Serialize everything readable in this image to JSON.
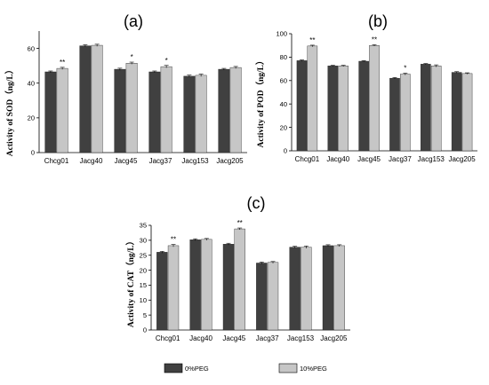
{
  "colors": {
    "series_0": "#404040",
    "series_1": "#c6c6c6",
    "axis": "#000000"
  },
  "legend": {
    "items": [
      {
        "label": "0%PEG",
        "color": "#404040"
      },
      {
        "label": "10%PEG",
        "color": "#c6c6c6"
      }
    ]
  },
  "chart_data": [
    {
      "type": "bar",
      "panel_label": "(a)",
      "ylabel": "Activity of SOD（ng/L）",
      "ylim": [
        0,
        70
      ],
      "yticks": [
        0,
        20,
        40,
        60
      ],
      "categories": [
        "Chcg01",
        "Jacg40",
        "Jacg45",
        "Jacg37",
        "Jacg153",
        "Jacg205"
      ],
      "series": [
        {
          "name": "0%PEG",
          "values": [
            46.5,
            61.5,
            48.0,
            46.5,
            44.0,
            48.0
          ]
        },
        {
          "name": "10%PEG",
          "values": [
            48.5,
            61.8,
            51.5,
            49.5,
            44.5,
            49.0
          ]
        }
      ],
      "errors": [
        [
          0.5,
          0.6,
          0.6,
          0.5,
          0.6,
          0.5
        ],
        [
          0.6,
          0.6,
          0.6,
          0.7,
          0.7,
          0.6
        ]
      ],
      "significance": [
        "**",
        "",
        "*",
        "*",
        "",
        ""
      ],
      "grid": false
    },
    {
      "type": "bar",
      "panel_label": "(b)",
      "ylabel": "Activity of POD（ng/L）",
      "ylim": [
        0,
        100
      ],
      "yticks": [
        0,
        20,
        40,
        60,
        80,
        100
      ],
      "categories": [
        "Chcg01",
        "Jacg40",
        "Jacg45",
        "Jacg37",
        "Jacg153",
        "Jacg205"
      ],
      "series": [
        {
          "name": "0%PEG",
          "values": [
            77.0,
            72.5,
            76.5,
            62.0,
            74.0,
            67.0
          ]
        },
        {
          "name": "10%PEG",
          "values": [
            89.5,
            72.5,
            90.0,
            65.5,
            72.5,
            66.0
          ]
        }
      ],
      "errors": [
        [
          0.6,
          0.5,
          0.5,
          0.6,
          0.5,
          0.6
        ],
        [
          0.7,
          0.5,
          0.6,
          0.8,
          0.9,
          0.6
        ]
      ],
      "significance": [
        "**",
        "",
        "**",
        "*",
        "",
        ""
      ],
      "grid": false
    },
    {
      "type": "bar",
      "panel_label": "(c)",
      "ylabel": "Activity of CAT（ng/L）",
      "ylim": [
        0,
        35
      ],
      "yticks": [
        0,
        5,
        10,
        15,
        20,
        25,
        30,
        35
      ],
      "categories": [
        "Chcg01",
        "Jacg40",
        "Jacg45",
        "Jacg37",
        "Jacg153",
        "Jacg205"
      ],
      "series": [
        {
          "name": "0%PEG",
          "values": [
            26.0,
            30.2,
            28.7,
            22.4,
            27.7,
            28.2
          ]
        },
        {
          "name": "10%PEG",
          "values": [
            28.2,
            30.3,
            33.8,
            22.6,
            27.7,
            28.2
          ]
        }
      ],
      "errors": [
        [
          0.3,
          0.3,
          0.3,
          0.3,
          0.3,
          0.3
        ],
        [
          0.4,
          0.3,
          0.3,
          0.3,
          0.4,
          0.3
        ]
      ],
      "significance": [
        "**",
        "",
        "**",
        "",
        "",
        ""
      ],
      "grid": false
    }
  ]
}
